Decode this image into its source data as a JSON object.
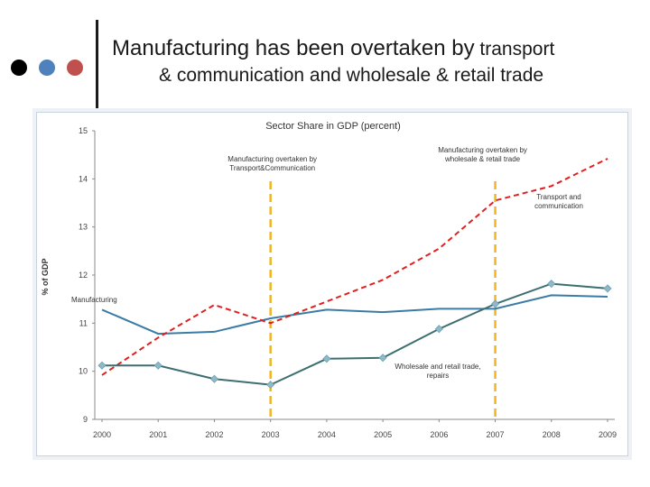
{
  "slide": {
    "title_line1": "Manufacturing has been overtaken by",
    "title_line1_end": " transport",
    "title_line2": "& communication and wholesale & retail trade",
    "dot_colors": [
      "#000000",
      "#4f81bd",
      "#c0504d"
    ]
  },
  "chart_data": {
    "type": "line",
    "title": "Sector Share in GDP (percent)",
    "xlabel": "",
    "ylabel": "% of GDP",
    "categories": [
      "2000",
      "2001",
      "2002",
      "2003",
      "2004",
      "2005",
      "2006",
      "2007",
      "2008",
      "2009"
    ],
    "ylim": [
      9,
      15
    ],
    "yticks": [
      9,
      10,
      11,
      12,
      13,
      14,
      15
    ],
    "grid": false,
    "series": [
      {
        "name": "Manufacturing",
        "color": "#3a7ca5",
        "style": "solid",
        "markers": false,
        "values": [
          11.28,
          10.78,
          10.82,
          11.1,
          11.28,
          11.23,
          11.3,
          11.3,
          11.58,
          11.55
        ]
      },
      {
        "name": "Transport and communication",
        "color": "#e02020",
        "style": "dashed",
        "markers": false,
        "values": [
          9.92,
          10.7,
          11.38,
          11.0,
          11.45,
          11.9,
          12.55,
          13.55,
          13.85,
          14.42
        ]
      },
      {
        "name": "Wholesale and retail trade, repairs",
        "color": "#3d6e70",
        "style": "solid",
        "markers": true,
        "values": [
          10.12,
          10.12,
          9.84,
          9.72,
          10.26,
          10.28,
          10.88,
          11.4,
          11.82,
          11.72
        ]
      }
    ],
    "annotations": [
      {
        "text_lines": [
          "Manufacturing overtaken by",
          "Transport&Communication"
        ],
        "x": "2003"
      },
      {
        "text_lines": [
          "Manufacturing overtaken by",
          "wholesale & retail trade"
        ],
        "x": "2007"
      }
    ],
    "series_labels": [
      {
        "lines": [
          "Manufacturing"
        ]
      },
      {
        "lines": [
          "Transport and",
          "communication"
        ]
      },
      {
        "lines": [
          "Wholesale and retail trade,",
          "repairs"
        ]
      }
    ],
    "vline_color": "#f2b51e"
  }
}
